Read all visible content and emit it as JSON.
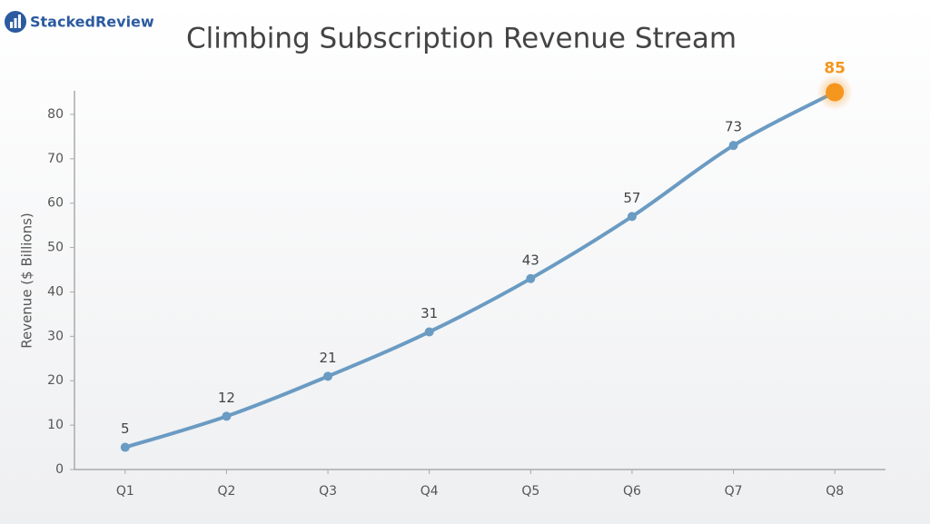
{
  "logo": "StackedReview",
  "chart_data": {
    "type": "line",
    "title": "Climbing Subscription Revenue Stream",
    "y_label": "Revenue ($ Billions)",
    "categories": [
      "Q1",
      "Q2",
      "Q3",
      "Q4",
      "Q5",
      "Q6",
      "Q7",
      "Q8"
    ],
    "values": [
      5,
      12,
      21,
      31,
      43,
      57,
      73,
      85
    ],
    "color": "#6a9bc3",
    "highlight_color": "#f5961e",
    "ylim": [
      0,
      85
    ],
    "yticks": [
      0,
      10,
      20,
      30,
      40,
      50,
      60,
      70,
      80
    ],
    "grid": false
  }
}
